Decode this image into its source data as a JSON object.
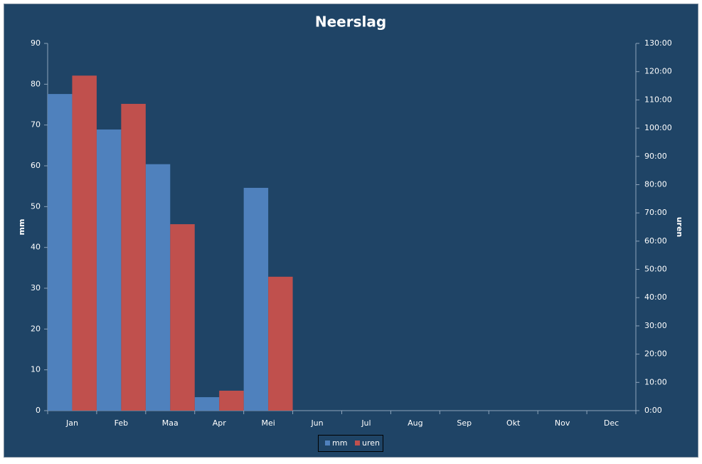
{
  "chart_data": {
    "type": "bar",
    "title": "Neerslag",
    "categories": [
      "Jan",
      "Feb",
      "Maa",
      "Apr",
      "Mei",
      "Jun",
      "Jul",
      "Aug",
      "Sep",
      "Okt",
      "Nov",
      "Dec"
    ],
    "series": [
      {
        "name": "mm",
        "color": "#4f81bd",
        "values": [
          77.6,
          68.9,
          60.4,
          3.3,
          54.6,
          null,
          null,
          null,
          null,
          null,
          null,
          null
        ]
      },
      {
        "name": "uren",
        "color": "#c0504d",
        "axis": "y2",
        "values": [
          118.6,
          108.6,
          66,
          7.05,
          47.4,
          null,
          null,
          null,
          null,
          null,
          null,
          null
        ]
      }
    ],
    "ylabel": "mm",
    "y2label": "uren",
    "ylim": [
      0,
      90
    ],
    "yticks": [
      0,
      10,
      20,
      30,
      40,
      50,
      60,
      70,
      80,
      90
    ],
    "y2lim": [
      0,
      130
    ],
    "y2ticks": [
      {
        "value": 0,
        "label": "0:00"
      },
      {
        "value": 10,
        "label": "10:00"
      },
      {
        "value": 20,
        "label": "20:00"
      },
      {
        "value": 30,
        "label": "30:00"
      },
      {
        "value": 40,
        "label": "40:00"
      },
      {
        "value": 50,
        "label": "50:00"
      },
      {
        "value": 60,
        "label": "60:00"
      },
      {
        "value": 70,
        "label": "70:00"
      },
      {
        "value": 80,
        "label": "80:00"
      },
      {
        "value": 90,
        "label": "90:00"
      },
      {
        "value": 100,
        "label": "100:00"
      },
      {
        "value": 110,
        "label": "110:00"
      },
      {
        "value": 120,
        "label": "120:00"
      },
      {
        "value": 130,
        "label": "130:00"
      }
    ],
    "grid": false,
    "legend": "bottom"
  }
}
